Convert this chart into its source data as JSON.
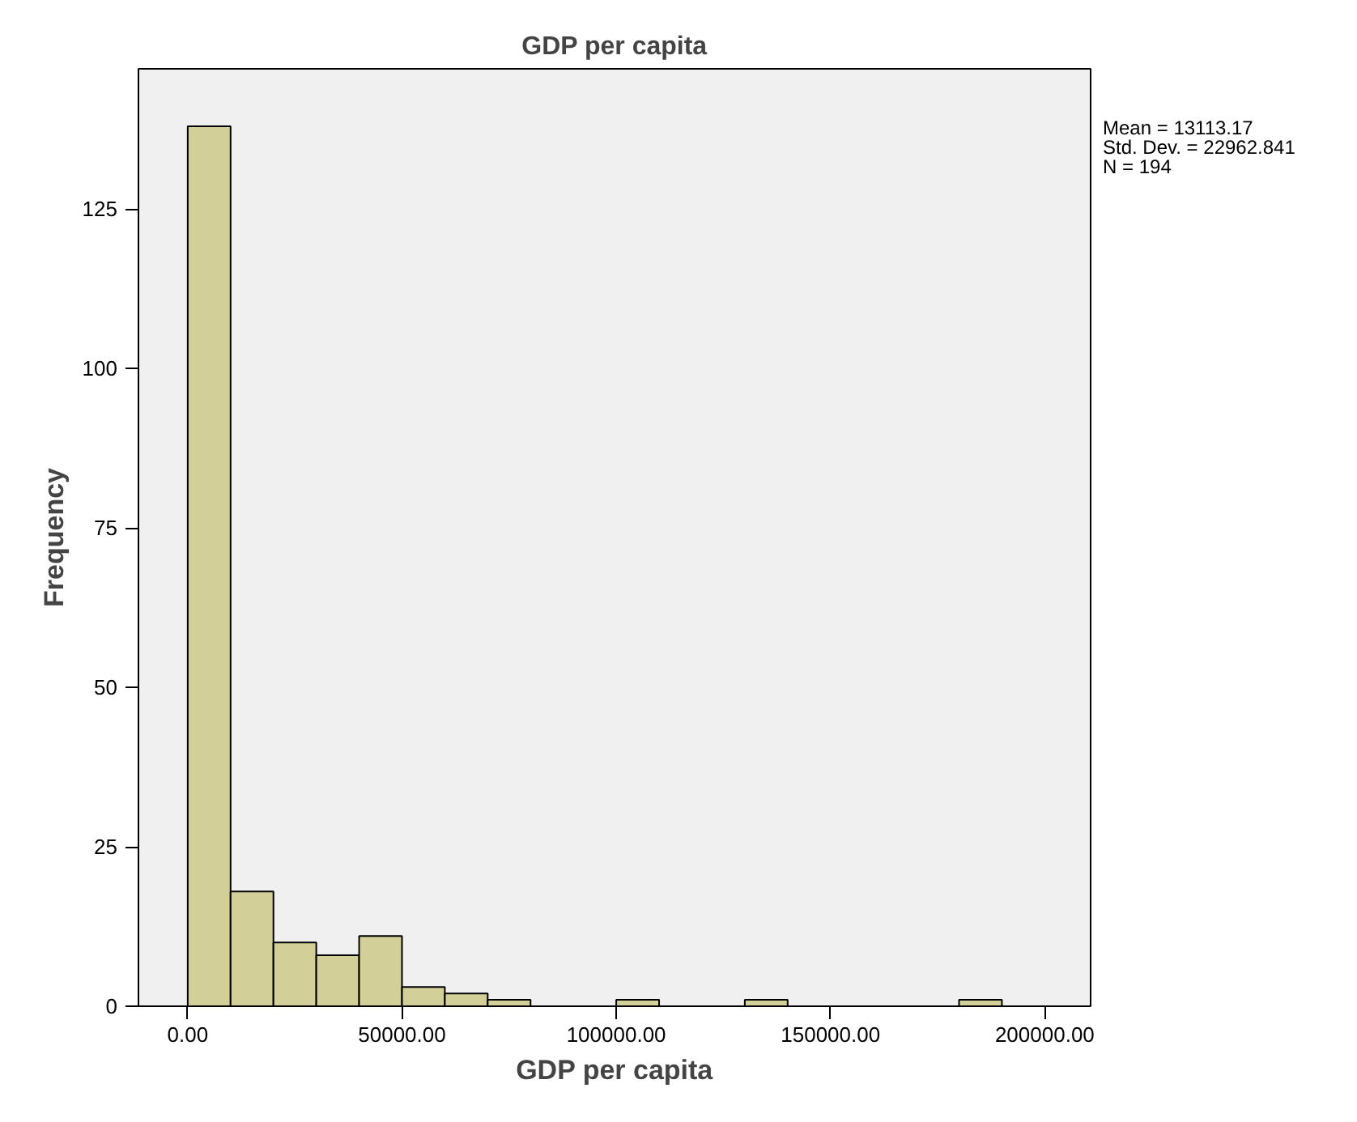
{
  "chart_data": {
    "type": "histogram",
    "title": "GDP per capita",
    "xlabel": "GDP per capita",
    "ylabel": "Frequency",
    "bins": [
      0,
      10000,
      20000,
      30000,
      40000,
      50000,
      60000,
      70000,
      80000,
      90000,
      100000,
      110000,
      120000,
      130000,
      140000,
      150000,
      160000,
      170000,
      180000,
      190000
    ],
    "values": [
      138,
      18,
      10,
      8,
      11,
      3,
      2,
      1,
      0,
      0,
      1,
      0,
      0,
      1,
      0,
      0,
      0,
      0,
      1
    ],
    "color": "#d3cf98",
    "xlim": [
      -11500,
      210700
    ],
    "ylim": [
      0,
      147
    ],
    "xticks": [
      {
        "value": 0,
        "label": "0.00"
      },
      {
        "value": 50000,
        "label": "50000.00"
      },
      {
        "value": 100000,
        "label": "100000.00"
      },
      {
        "value": 150000,
        "label": "150000.00"
      },
      {
        "value": 200000,
        "label": "200000.00"
      }
    ],
    "yticks": [
      0,
      25,
      50,
      75,
      100,
      125
    ],
    "grid": false,
    "annotations": [
      "Mean = 13113.17",
      "Std. Dev. = 22962.841",
      "N = 194"
    ]
  }
}
